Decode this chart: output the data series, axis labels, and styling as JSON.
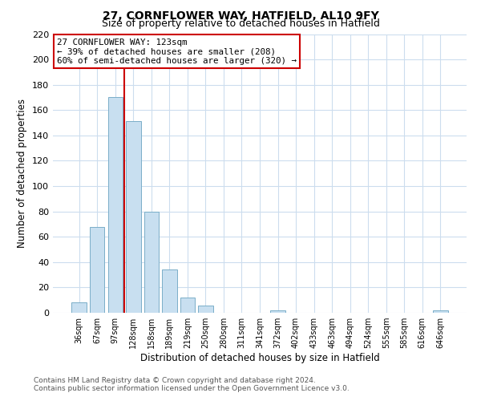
{
  "title": "27, CORNFLOWER WAY, HATFIELD, AL10 9FY",
  "subtitle": "Size of property relative to detached houses in Hatfield",
  "xlabel": "Distribution of detached houses by size in Hatfield",
  "ylabel": "Number of detached properties",
  "bar_labels": [
    "36sqm",
    "67sqm",
    "97sqm",
    "128sqm",
    "158sqm",
    "189sqm",
    "219sqm",
    "250sqm",
    "280sqm",
    "311sqm",
    "341sqm",
    "372sqm",
    "402sqm",
    "433sqm",
    "463sqm",
    "494sqm",
    "524sqm",
    "555sqm",
    "585sqm",
    "616sqm",
    "646sqm"
  ],
  "bar_values": [
    8,
    68,
    170,
    151,
    80,
    34,
    12,
    6,
    0,
    0,
    0,
    2,
    0,
    0,
    0,
    0,
    0,
    0,
    0,
    0,
    2
  ],
  "bar_color": "#c8dff0",
  "bar_edge_color": "#7aaec8",
  "annotation_text": "27 CORNFLOWER WAY: 123sqm\n← 39% of detached houses are smaller (208)\n60% of semi-detached houses are larger (320) →",
  "annotation_box_color": "#ffffff",
  "annotation_box_edge": "#cc0000",
  "ylim": [
    0,
    220
  ],
  "yticks": [
    0,
    20,
    40,
    60,
    80,
    100,
    120,
    140,
    160,
    180,
    200,
    220
  ],
  "footer_line1": "Contains HM Land Registry data © Crown copyright and database right 2024.",
  "footer_line2": "Contains public sector information licensed under the Open Government Licence v3.0.",
  "bg_color": "#ffffff",
  "grid_color": "#ccddee",
  "line_color": "#cc0000",
  "title_fontsize": 10,
  "subtitle_fontsize": 9
}
